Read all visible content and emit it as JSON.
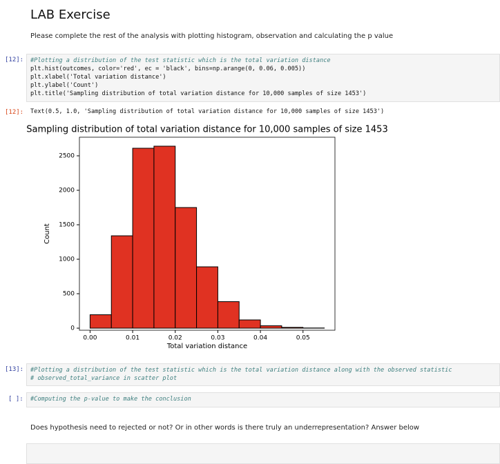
{
  "header": {
    "title": "LAB Exercise",
    "intro": "Please complete the rest of the analysis with plotting histogram, observation and calculating the p value"
  },
  "cells": [
    {
      "prompt": "[12]:",
      "lines": [
        "#Plotting a distribution of the test statistic which is the total variation distance",
        "plt.hist(outcomes, color='red', ec = 'black', bins=np.arange(0, 0.06, 0.005))",
        "plt.xlabel('Total variation distance')",
        "plt.ylabel('Count')",
        "plt.title('Sampling distribution of total variation distance for 10,000 samples of size 1453')"
      ]
    },
    {
      "prompt": "[13]:",
      "lines": [
        "#Plotting a distribution of the test statistic which is the total variation distance along with the observed statistic",
        "# observed_total_variance in scatter plot"
      ]
    },
    {
      "prompt": "[ ]:",
      "lines": [
        "#Computing the p-value to make the conclusion"
      ]
    }
  ],
  "output": {
    "prompt": "[12]:",
    "text": "Text(0.5, 1.0, 'Sampling distribution of total variation distance for 10,000 samples of size 1453')"
  },
  "question": "Does hypothesis need to rejected or not? Or in other words is there truly an underrepresentation? Answer below",
  "chart_data": {
    "type": "histogram",
    "title": "Sampling distribution of total variation distance for 10,000 samples of size 1453",
    "x_label": "Total variation distance",
    "y_label": "Count",
    "bins": [
      0,
      0.005,
      0.01,
      0.015,
      0.02,
      0.025,
      0.03,
      0.035,
      0.04,
      0.045,
      0.05,
      0.055,
      0.06
    ],
    "counts": [
      195,
      1340,
      2610,
      2640,
      1750,
      890,
      385,
      120,
      35,
      12,
      3,
      0
    ],
    "color": "#e03222",
    "edgecolor": "#000000",
    "xlim": [
      -0.0025,
      0.0575
    ],
    "ylim": [
      -30,
      2770
    ],
    "xticks": [
      {
        "value": 0,
        "label": "0.00"
      },
      {
        "value": 0.01,
        "label": "0.01"
      },
      {
        "value": 0.02,
        "label": "0.02"
      },
      {
        "value": 0.03,
        "label": "0.03"
      },
      {
        "value": 0.04,
        "label": "0.04"
      },
      {
        "value": 0.05,
        "label": "0.05"
      }
    ],
    "yticks": [
      0,
      500,
      1000,
      1500,
      2000,
      2500
    ]
  }
}
